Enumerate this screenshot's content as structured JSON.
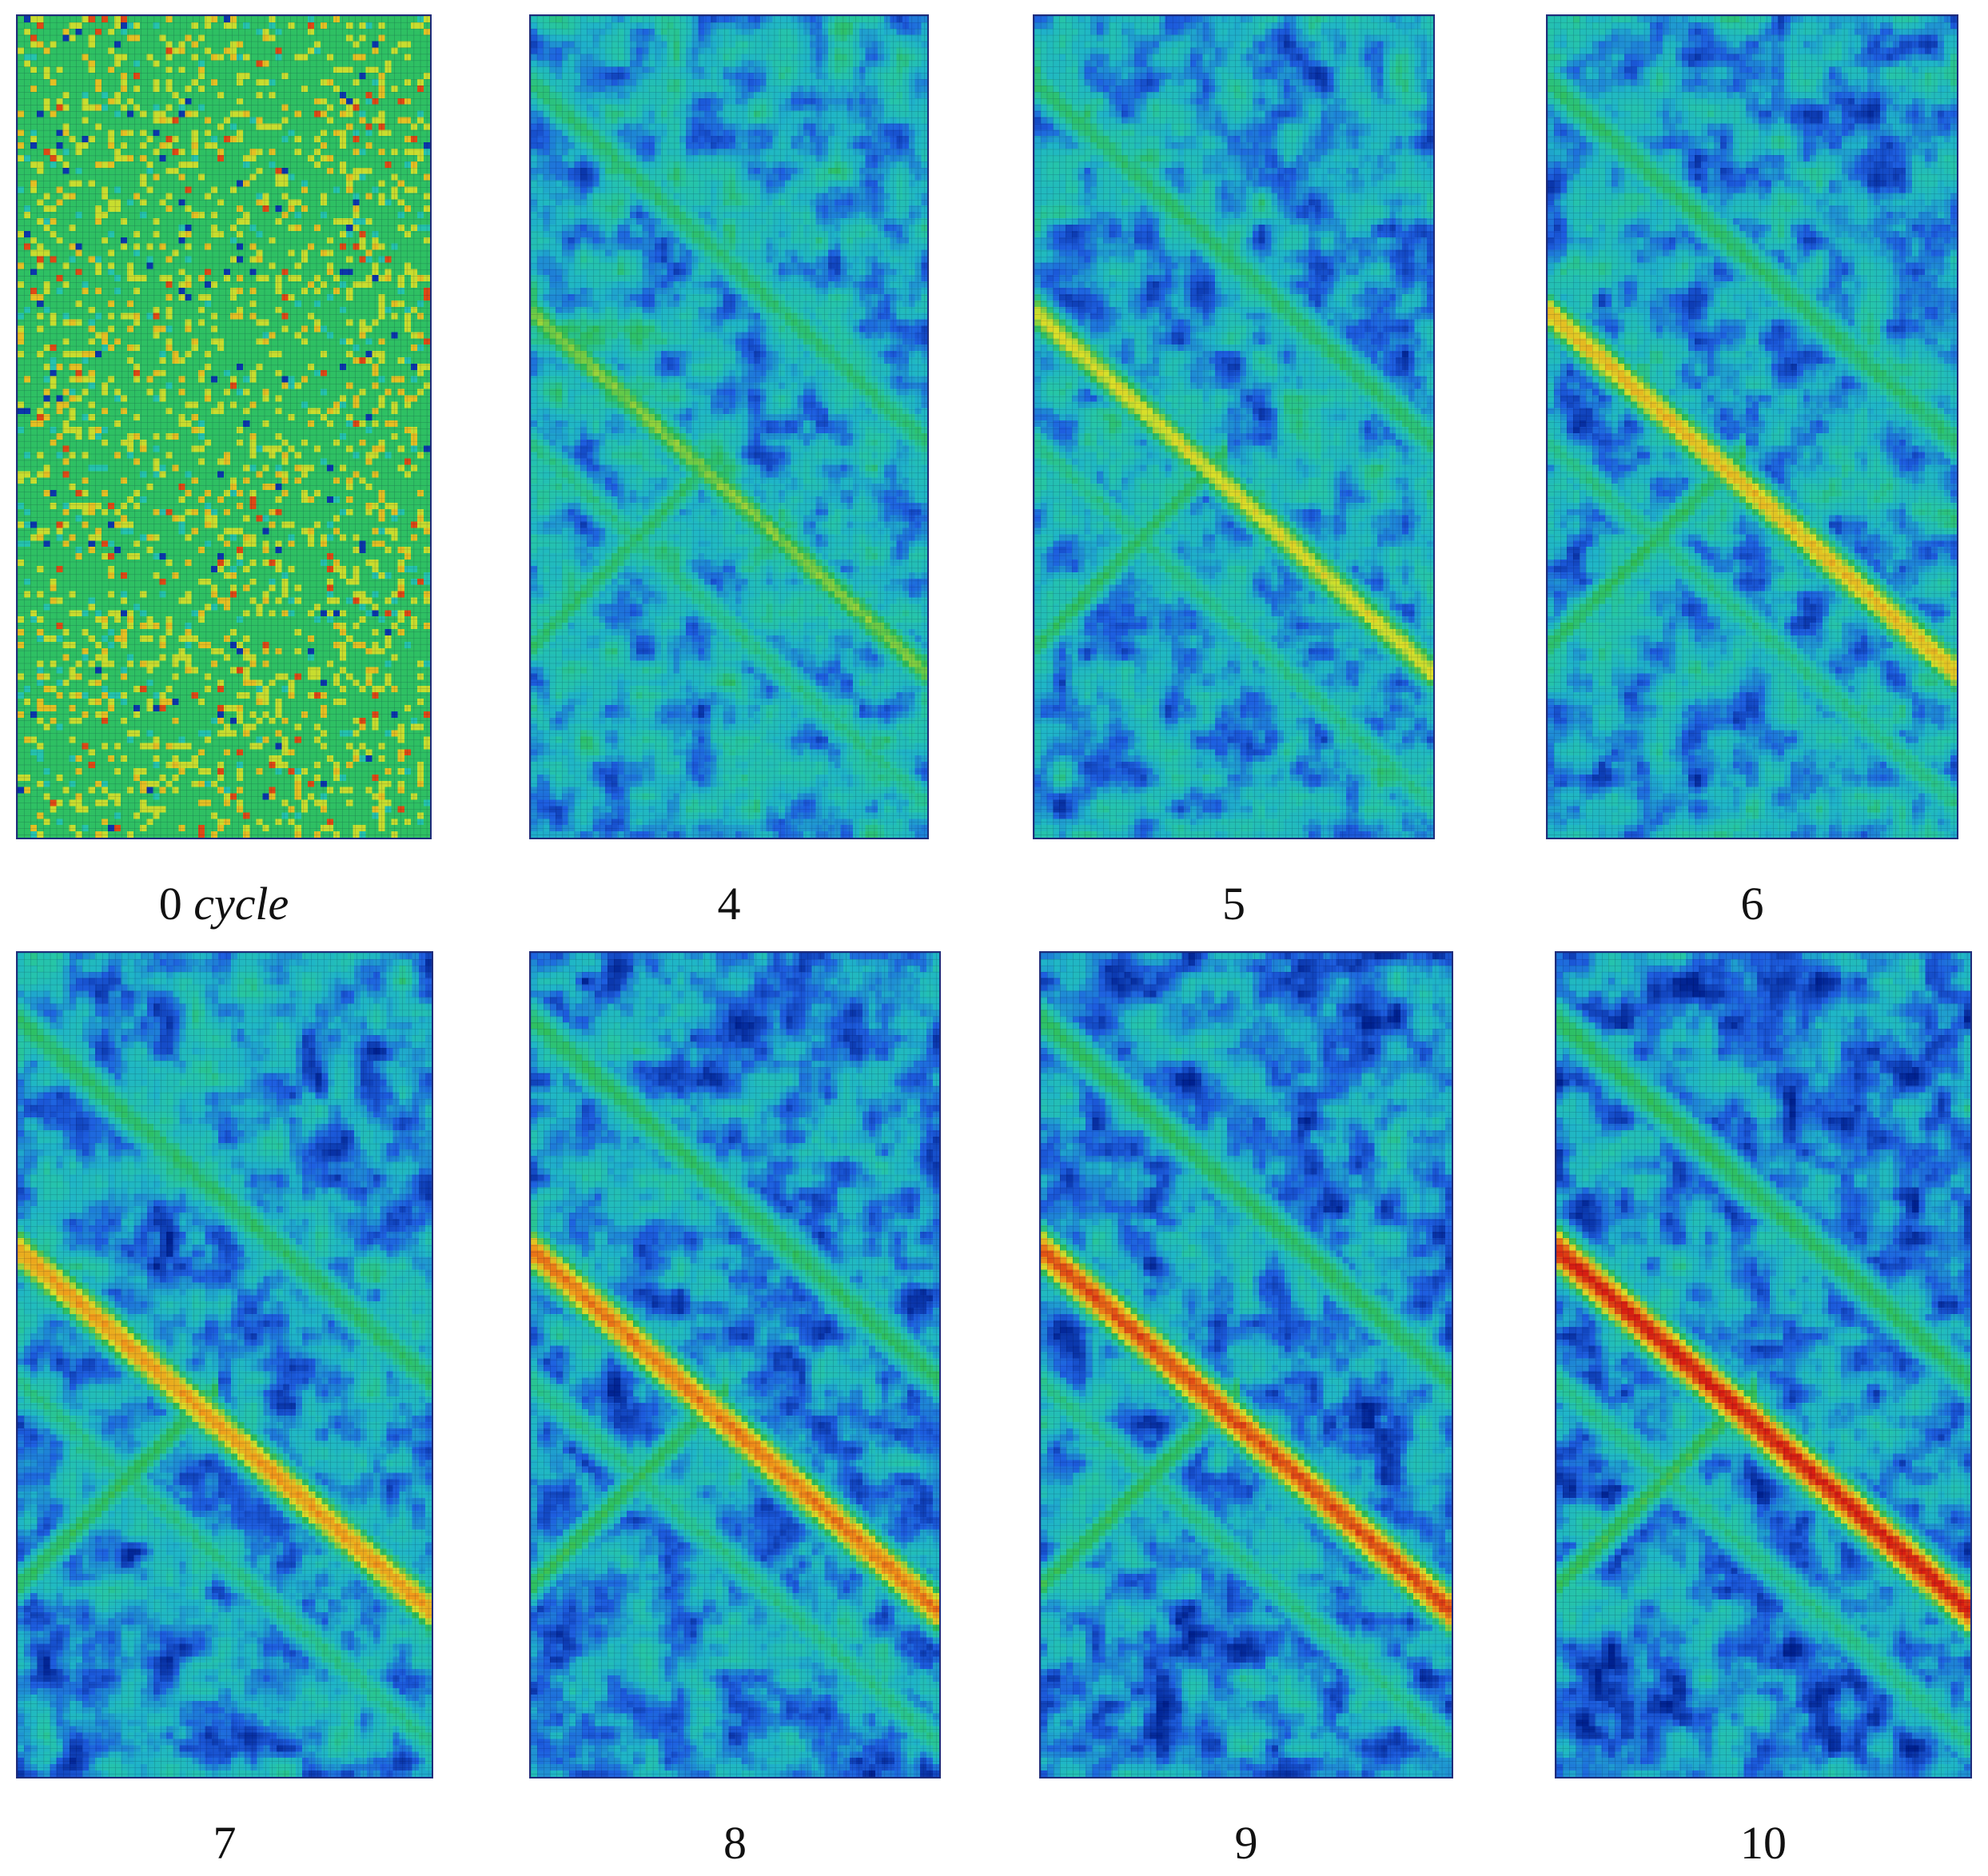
{
  "panels": [
    {
      "label": "0",
      "unit": "cycle",
      "severity": 0
    },
    {
      "label": "4",
      "unit": "",
      "severity": 0.35
    },
    {
      "label": "5",
      "unit": "",
      "severity": 0.5
    },
    {
      "label": "6",
      "unit": "",
      "severity": 0.62
    },
    {
      "label": "7",
      "unit": "",
      "severity": 0.72
    },
    {
      "label": "8",
      "unit": "",
      "severity": 0.8
    },
    {
      "label": "9",
      "unit": "",
      "severity": 0.9
    },
    {
      "label": "10",
      "unit": "",
      "severity": 1.0
    }
  ],
  "colormap": [
    "#00218f",
    "#1e5fe0",
    "#1fb5c8",
    "#26c6a7",
    "#2fbf57",
    "#d9e02a",
    "#f09a1a",
    "#d61e12"
  ],
  "mesh": {
    "columns": 64,
    "rows": 130
  }
}
